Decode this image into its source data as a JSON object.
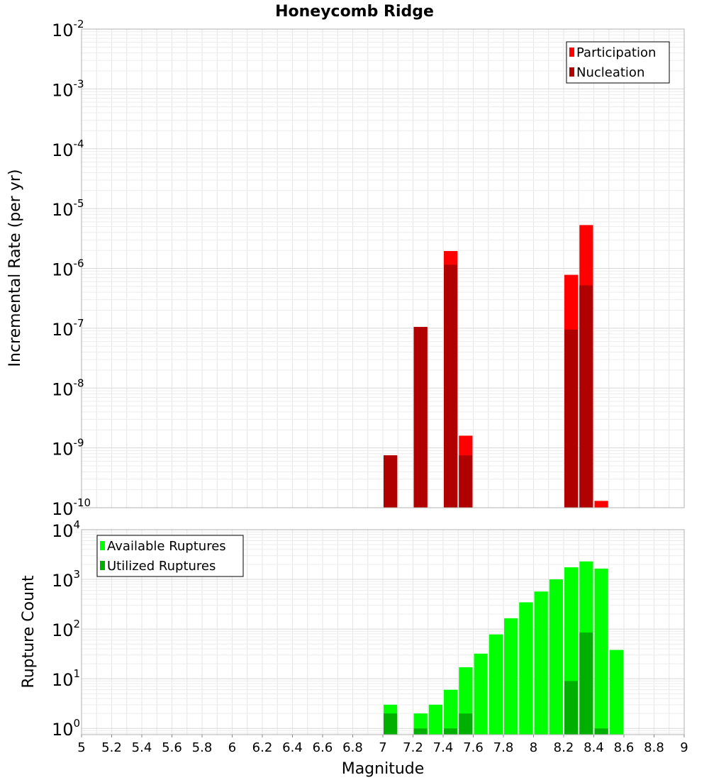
{
  "title": "Honeycomb Ridge",
  "chart_data": [
    {
      "type": "bar",
      "ylabel": "Incremental Rate (per yr)",
      "xlabel": "",
      "x_range": [
        5,
        9
      ],
      "y_scale": "log",
      "y_range": [
        1e-10,
        0.01
      ],
      "y_ticks": [
        {
          "base": "10",
          "exp": "-10"
        },
        {
          "base": "10",
          "exp": "-9"
        },
        {
          "base": "10",
          "exp": "-8"
        },
        {
          "base": "10",
          "exp": "-7"
        },
        {
          "base": "10",
          "exp": "-6"
        },
        {
          "base": "10",
          "exp": "-5"
        },
        {
          "base": "10",
          "exp": "-4"
        },
        {
          "base": "10",
          "exp": "-3"
        },
        {
          "base": "10",
          "exp": "-2"
        }
      ],
      "grid": true,
      "legend_position": "top-right",
      "series": [
        {
          "name": "Participation",
          "color": "#ff0000",
          "points": [
            {
              "x": 7.05,
              "y": 7.5e-10
            },
            {
              "x": 7.25,
              "y": 1.05e-07
            },
            {
              "x": 7.45,
              "y": 1.95e-06
            },
            {
              "x": 7.55,
              "y": 1.6e-09
            },
            {
              "x": 8.25,
              "y": 7.8e-07
            },
            {
              "x": 8.35,
              "y": 5.3e-06
            },
            {
              "x": 8.45,
              "y": 1.3e-10
            }
          ]
        },
        {
          "name": "Nucleation",
          "color": "#b00000",
          "points": [
            {
              "x": 7.05,
              "y": 7.5e-10
            },
            {
              "x": 7.25,
              "y": 1.05e-07
            },
            {
              "x": 7.45,
              "y": 1.15e-06
            },
            {
              "x": 7.55,
              "y": 7.5e-10
            },
            {
              "x": 8.25,
              "y": 9.5e-08
            },
            {
              "x": 8.35,
              "y": 5.2e-07
            }
          ]
        }
      ]
    },
    {
      "type": "bar",
      "ylabel": "Rupture Count",
      "xlabel": "Magnitude",
      "x_range": [
        5,
        9
      ],
      "x_ticks": [
        "5",
        "5.2",
        "5.4",
        "5.6",
        "5.8",
        "6",
        "6.2",
        "6.4",
        "6.6",
        "6.8",
        "7",
        "7.2",
        "7.4",
        "7.6",
        "7.8",
        "8",
        "8.2",
        "8.4",
        "8.6",
        "8.8",
        "9"
      ],
      "y_scale": "log",
      "y_range": [
        0.75,
        10000
      ],
      "y_ticks": [
        {
          "base": "10",
          "exp": "0"
        },
        {
          "base": "10",
          "exp": "1"
        },
        {
          "base": "10",
          "exp": "2"
        },
        {
          "base": "10",
          "exp": "3"
        },
        {
          "base": "10",
          "exp": "4"
        }
      ],
      "grid": true,
      "legend_position": "top-left",
      "series": [
        {
          "name": "Available Ruptures",
          "color": "#00ff00",
          "points": [
            {
              "x": 7.05,
              "y": 3
            },
            {
              "x": 7.25,
              "y": 2
            },
            {
              "x": 7.35,
              "y": 3
            },
            {
              "x": 7.45,
              "y": 6
            },
            {
              "x": 7.55,
              "y": 17
            },
            {
              "x": 7.65,
              "y": 32
            },
            {
              "x": 7.75,
              "y": 78
            },
            {
              "x": 7.85,
              "y": 165
            },
            {
              "x": 7.95,
              "y": 345
            },
            {
              "x": 8.05,
              "y": 570
            },
            {
              "x": 8.15,
              "y": 1000
            },
            {
              "x": 8.25,
              "y": 1750
            },
            {
              "x": 8.35,
              "y": 2300
            },
            {
              "x": 8.45,
              "y": 1650
            },
            {
              "x": 8.55,
              "y": 38
            }
          ]
        },
        {
          "name": "Utilized Ruptures",
          "color": "#00b000",
          "points": [
            {
              "x": 7.05,
              "y": 2
            },
            {
              "x": 7.25,
              "y": 1
            },
            {
              "x": 7.45,
              "y": 1
            },
            {
              "x": 7.55,
              "y": 2
            },
            {
              "x": 8.25,
              "y": 9
            },
            {
              "x": 8.35,
              "y": 85
            },
            {
              "x": 8.45,
              "y": 1
            }
          ]
        }
      ]
    }
  ]
}
